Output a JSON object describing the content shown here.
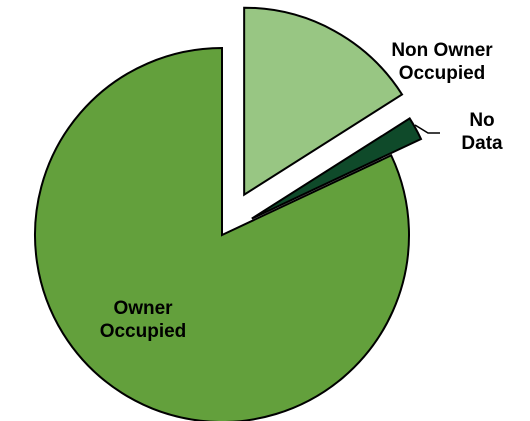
{
  "chart_data": {
    "type": "pie",
    "categories": [
      "Non Owner Occupied",
      "No Data",
      "Owner Occupied"
    ],
    "values": [
      16,
      2,
      82
    ],
    "colors": [
      "#98c683",
      "#0f4a2a",
      "#63a03c"
    ]
  }
}
